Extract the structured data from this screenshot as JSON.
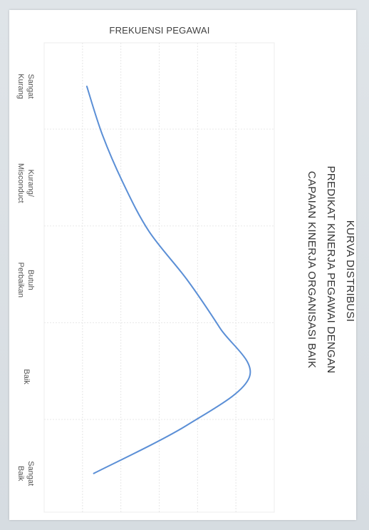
{
  "chart_data": {
    "type": "line",
    "orientation": "rotated-90",
    "title_lines": [
      "KURVA DISTRIBUSI",
      "PREDIKAT KINERJA PEGAWAI DENGAN",
      "CAPAIAN KINERJA ORGANISASI BAIK"
    ],
    "ylabel": "FREKUENSI PEGAWAI",
    "xlabel": "",
    "categories": [
      [
        "Sangat",
        "Kurang"
      ],
      [
        "Kurang/",
        "Misconduct"
      ],
      [
        "Butuh",
        "Perbaikan"
      ],
      [
        "Baik"
      ],
      [
        "Sangat",
        "Baik"
      ]
    ],
    "series": [
      {
        "color": "#5b8fd6",
        "x": [
          0.0,
          0.5,
          1.0,
          1.5,
          2.0,
          2.5,
          3.0,
          3.5,
          4.0
        ],
        "values": [
          0.2,
          1.1,
          2.3,
          3.8,
          6.0,
          7.9,
          9.6,
          6.0,
          0.6
        ]
      }
    ],
    "xlim": [
      -0.45,
      4.4
    ],
    "ylim": [
      0,
      10
    ],
    "grid": true,
    "legend": "none"
  }
}
